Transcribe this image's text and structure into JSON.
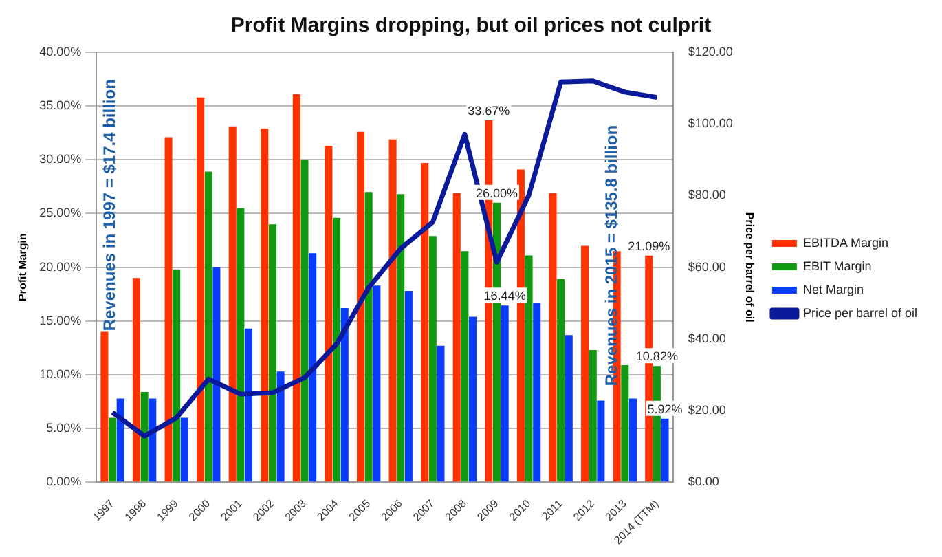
{
  "chart_data": {
    "type": "bar",
    "title": "Profit Margins dropping, but oil prices not culprit",
    "ylabel": "Profit Margin",
    "y2label": "Price per barrel of oil",
    "categories": [
      "1997",
      "1998",
      "1999",
      "2000",
      "2001",
      "2002",
      "2003",
      "2004",
      "2005",
      "2006",
      "2007",
      "2008",
      "2009",
      "2010",
      "2011",
      "2012",
      "2013",
      "2014 (TTM)"
    ],
    "series": [
      {
        "name": "EBITDA Margin",
        "color": "#ff3300",
        "values": [
          14.0,
          19.0,
          32.1,
          35.8,
          33.1,
          32.9,
          36.1,
          31.3,
          32.6,
          31.9,
          29.7,
          26.9,
          33.67,
          29.1,
          26.9,
          22.0,
          21.5,
          21.09
        ],
        "value_labels": [
          null,
          null,
          null,
          null,
          null,
          null,
          null,
          null,
          null,
          null,
          null,
          null,
          "33.67%",
          null,
          null,
          null,
          null,
          "21.09%"
        ]
      },
      {
        "name": "EBIT Margin",
        "color": "#119911",
        "values": [
          6.0,
          8.4,
          19.8,
          28.9,
          25.5,
          24.0,
          30.0,
          24.6,
          27.0,
          26.8,
          22.9,
          21.5,
          26.0,
          21.1,
          18.9,
          12.3,
          10.9,
          10.82
        ],
        "value_labels": [
          null,
          null,
          null,
          null,
          null,
          null,
          null,
          null,
          null,
          null,
          null,
          null,
          "26.00%",
          null,
          null,
          null,
          null,
          "10.82%"
        ]
      },
      {
        "name": "Net Margin",
        "color": "#0a3cff",
        "values": [
          7.8,
          7.8,
          6.0,
          20.0,
          14.3,
          10.3,
          21.3,
          16.2,
          18.3,
          17.8,
          12.7,
          15.4,
          16.44,
          16.7,
          13.7,
          7.6,
          7.8,
          5.92
        ],
        "value_labels": [
          null,
          null,
          null,
          null,
          null,
          null,
          null,
          null,
          null,
          null,
          null,
          null,
          "16.44%",
          null,
          null,
          null,
          null,
          "5.92%"
        ]
      },
      {
        "name": "Price per barrel of oil",
        "type": "line",
        "axis": "y2",
        "color": "#0a1a9a",
        "values": [
          19.5,
          12.9,
          18.0,
          28.8,
          24.6,
          25.0,
          29.2,
          38.6,
          54.3,
          65.2,
          72.6,
          97.1,
          61.4,
          80.1,
          111.7,
          112.0,
          108.9,
          107.4
        ]
      }
    ],
    "ylim": [
      0,
      40
    ],
    "yticks": [
      {
        "value": 0,
        "label": "0.00%"
      },
      {
        "value": 5,
        "label": "5.00%"
      },
      {
        "value": 10,
        "label": "10.00%"
      },
      {
        "value": 15,
        "label": "15.00%"
      },
      {
        "value": 20,
        "label": "20.00%"
      },
      {
        "value": 25,
        "label": "25.00%"
      },
      {
        "value": 30,
        "label": "30.00%"
      },
      {
        "value": 35,
        "label": "35.00%"
      },
      {
        "value": 40,
        "label": "40.00%"
      }
    ],
    "y2lim": [
      0,
      120
    ],
    "y2ticks": [
      {
        "value": 0,
        "label": "$0.00"
      },
      {
        "value": 20,
        "label": "$20.00"
      },
      {
        "value": 40,
        "label": "$40.00"
      },
      {
        "value": 60,
        "label": "$60.00"
      },
      {
        "value": 80,
        "label": "$80.00"
      },
      {
        "value": 100,
        "label": "$100.00"
      },
      {
        "value": 120,
        "label": "$120.00"
      }
    ],
    "annotations": [
      "Revenues in 1997 = $17.4 billion",
      "Revenues in 2015 = $135.8 billion"
    ],
    "grid": "y",
    "legend": "right",
    "marker": "none",
    "line_style": "solid"
  }
}
